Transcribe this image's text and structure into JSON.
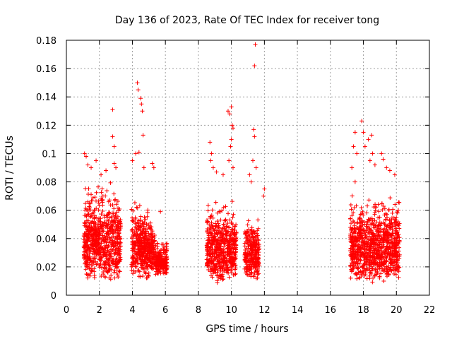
{
  "chart_data": {
    "type": "scatter",
    "title": "Day 136 of 2023, Rate Of TEC Index for receiver tong",
    "xlabel": "GPS time / hours",
    "ylabel": "ROTI / TECUs",
    "xlim": [
      0,
      22
    ],
    "ylim": [
      0,
      0.18
    ],
    "xticks": [
      0,
      2,
      4,
      6,
      8,
      10,
      12,
      14,
      16,
      18,
      20,
      22
    ],
    "yticks": [
      0,
      0.02,
      0.04,
      0.06,
      0.08,
      0.1,
      0.12,
      0.14,
      0.16,
      0.18
    ],
    "grid": true,
    "marker": "+",
    "color": "#ff0000",
    "clusters": [
      {
        "x_range": [
          1.05,
          3.3
        ],
        "y_range": [
          0.009,
          0.085
        ]
      },
      {
        "x_range": [
          3.95,
          5.0
        ],
        "y_range": [
          0.01,
          0.07
        ]
      },
      {
        "x_range": [
          5.0,
          5.35
        ],
        "y_range": [
          0.015,
          0.06
        ]
      },
      {
        "x_range": [
          5.4,
          6.1
        ],
        "y_range": [
          0.014,
          0.04
        ]
      },
      {
        "x_range": [
          8.5,
          10.3
        ],
        "y_range": [
          0.008,
          0.07
        ]
      },
      {
        "x_range": [
          10.8,
          11.7
        ],
        "y_range": [
          0.01,
          0.06
        ]
      },
      {
        "x_range": [
          17.2,
          20.2
        ],
        "y_range": [
          0.008,
          0.075
        ]
      }
    ],
    "outliers": [
      [
        1.1,
        0.1
      ],
      [
        1.2,
        0.098
      ],
      [
        1.3,
        0.092
      ],
      [
        1.5,
        0.09
      ],
      [
        1.8,
        0.095
      ],
      [
        2.1,
        0.085
      ],
      [
        2.4,
        0.088
      ],
      [
        2.8,
        0.131
      ],
      [
        2.8,
        0.112
      ],
      [
        2.9,
        0.105
      ],
      [
        2.9,
        0.093
      ],
      [
        3.0,
        0.09
      ],
      [
        4.3,
        0.15
      ],
      [
        4.35,
        0.145
      ],
      [
        4.5,
        0.139
      ],
      [
        4.55,
        0.135
      ],
      [
        4.6,
        0.13
      ],
      [
        4.65,
        0.113
      ],
      [
        4.4,
        0.101
      ],
      [
        4.2,
        0.1
      ],
      [
        4.0,
        0.095
      ],
      [
        4.7,
        0.09
      ],
      [
        5.2,
        0.093
      ],
      [
        5.3,
        0.09
      ],
      [
        5.7,
        0.059
      ],
      [
        8.7,
        0.108
      ],
      [
        8.8,
        0.1
      ],
      [
        8.75,
        0.095
      ],
      [
        8.9,
        0.09
      ],
      [
        9.1,
        0.087
      ],
      [
        9.8,
        0.13
      ],
      [
        9.9,
        0.128
      ],
      [
        10.0,
        0.133
      ],
      [
        10.05,
        0.12
      ],
      [
        10.1,
        0.118
      ],
      [
        10.0,
        0.11
      ],
      [
        9.95,
        0.105
      ],
      [
        9.85,
        0.095
      ],
      [
        10.1,
        0.09
      ],
      [
        9.5,
        0.085
      ],
      [
        11.45,
        0.177
      ],
      [
        11.4,
        0.162
      ],
      [
        11.35,
        0.117
      ],
      [
        11.4,
        0.112
      ],
      [
        11.3,
        0.095
      ],
      [
        11.5,
        0.09
      ],
      [
        11.1,
        0.085
      ],
      [
        11.2,
        0.08
      ],
      [
        12.0,
        0.075
      ],
      [
        11.95,
        0.07
      ],
      [
        17.5,
        0.115
      ],
      [
        17.4,
        0.105
      ],
      [
        17.6,
        0.1
      ],
      [
        17.9,
        0.123
      ],
      [
        18.0,
        0.115
      ],
      [
        18.1,
        0.105
      ],
      [
        18.3,
        0.11
      ],
      [
        18.5,
        0.113
      ],
      [
        18.55,
        0.1
      ],
      [
        18.4,
        0.095
      ],
      [
        18.7,
        0.092
      ],
      [
        19.1,
        0.1
      ],
      [
        19.2,
        0.096
      ],
      [
        19.4,
        0.09
      ],
      [
        19.6,
        0.088
      ],
      [
        19.9,
        0.085
      ],
      [
        17.3,
        0.09
      ],
      [
        17.5,
        0.08
      ]
    ]
  }
}
